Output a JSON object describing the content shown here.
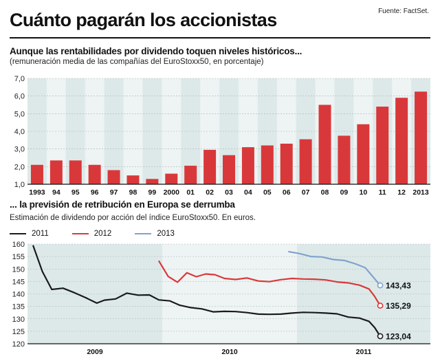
{
  "header": {
    "title": "Cuánto pagarán los accionistas",
    "source": "Fuente: FactSet."
  },
  "chart_data": [
    {
      "type": "bar",
      "title": "Aunque las rentabilidades por dividendo toquen niveles históricos...",
      "subtitle": "(remuneración media de las compañías del EuroStoxx50, en porcentaje)",
      "categories": [
        "1993",
        "94",
        "95",
        "96",
        "97",
        "98",
        "99",
        "2000",
        "01",
        "02",
        "03",
        "04",
        "05",
        "06",
        "07",
        "08",
        "09",
        "10",
        "11",
        "12",
        "2013"
      ],
      "values": [
        2.1,
        2.35,
        2.35,
        2.1,
        1.8,
        1.5,
        1.3,
        1.6,
        2.05,
        2.95,
        2.65,
        3.1,
        3.2,
        3.3,
        3.55,
        5.5,
        3.75,
        4.4,
        5.4,
        5.9,
        6.25
      ],
      "yticks": [
        "1,0",
        "2,0",
        "3,0",
        "4,0",
        "5,0",
        "6,0",
        "7,0"
      ],
      "ylim": [
        1,
        7
      ],
      "grid": true,
      "colors": {
        "bar": "#d9383a",
        "band": "#dde9e9"
      }
    },
    {
      "type": "line",
      "title": "... la previsión de retribución en Europa se derrumba",
      "subtitle": "Estimación de dividendo por acción del índice EuroStoxx50. En euros.",
      "x_labels": [
        "2009",
        "2010",
        "2011"
      ],
      "yticks": [
        "120",
        "125",
        "130",
        "135",
        "140",
        "145",
        "150",
        "155",
        "160"
      ],
      "ylim": [
        120,
        160
      ],
      "grid": true,
      "legend_position": "top-left",
      "series": [
        {
          "name": "2011",
          "color": "#1a1a1a",
          "end_label": "123,04",
          "points": [
            [
              0.0,
              159.5
            ],
            [
              0.025,
              149
            ],
            [
              0.05,
              141.8
            ],
            [
              0.08,
              142.3
            ],
            [
              0.11,
              140.5
            ],
            [
              0.14,
              138.5
            ],
            [
              0.17,
              136.3
            ],
            [
              0.19,
              137.5
            ],
            [
              0.22,
              138
            ],
            [
              0.25,
              140.3
            ],
            [
              0.28,
              139.5
            ],
            [
              0.31,
              139.6
            ],
            [
              0.335,
              137.6
            ],
            [
              0.365,
              137.2
            ],
            [
              0.39,
              135.5
            ],
            [
              0.42,
              134.5
            ],
            [
              0.45,
              134
            ],
            [
              0.48,
              132.8
            ],
            [
              0.51,
              133
            ],
            [
              0.54,
              132.9
            ],
            [
              0.57,
              132.5
            ],
            [
              0.6,
              131.9
            ],
            [
              0.63,
              131.8
            ],
            [
              0.66,
              131.9
            ],
            [
              0.69,
              132.3
            ],
            [
              0.72,
              132.6
            ],
            [
              0.75,
              132.5
            ],
            [
              0.78,
              132.3
            ],
            [
              0.81,
              132
            ],
            [
              0.84,
              130.7
            ],
            [
              0.87,
              130.3
            ],
            [
              0.895,
              129
            ],
            [
              0.91,
              126.5
            ],
            [
              0.925,
              123.04
            ]
          ]
        },
        {
          "name": "2012",
          "color": "#d9383a",
          "end_label": "135,29",
          "points": [
            [
              0.335,
              153.3
            ],
            [
              0.36,
              147
            ],
            [
              0.385,
              144.7
            ],
            [
              0.41,
              148.5
            ],
            [
              0.435,
              146.9
            ],
            [
              0.46,
              148
            ],
            [
              0.485,
              147.7
            ],
            [
              0.51,
              146.2
            ],
            [
              0.54,
              145.8
            ],
            [
              0.57,
              146.4
            ],
            [
              0.6,
              145.2
            ],
            [
              0.63,
              144.9
            ],
            [
              0.66,
              145.7
            ],
            [
              0.69,
              146.2
            ],
            [
              0.72,
              146
            ],
            [
              0.75,
              145.9
            ],
            [
              0.78,
              145.6
            ],
            [
              0.81,
              144.8
            ],
            [
              0.84,
              144.4
            ],
            [
              0.87,
              143.5
            ],
            [
              0.895,
              142
            ],
            [
              0.91,
              139
            ],
            [
              0.925,
              135.29
            ]
          ]
        },
        {
          "name": "2013",
          "color": "#7fa3cc",
          "end_label": "143,43",
          "points": [
            [
              0.68,
              157
            ],
            [
              0.71,
              156.2
            ],
            [
              0.74,
              155
            ],
            [
              0.77,
              154.8
            ],
            [
              0.8,
              153.8
            ],
            [
              0.83,
              153.4
            ],
            [
              0.86,
              152
            ],
            [
              0.885,
              150.5
            ],
            [
              0.905,
              147
            ],
            [
              0.925,
              143.43
            ]
          ]
        }
      ]
    }
  ]
}
